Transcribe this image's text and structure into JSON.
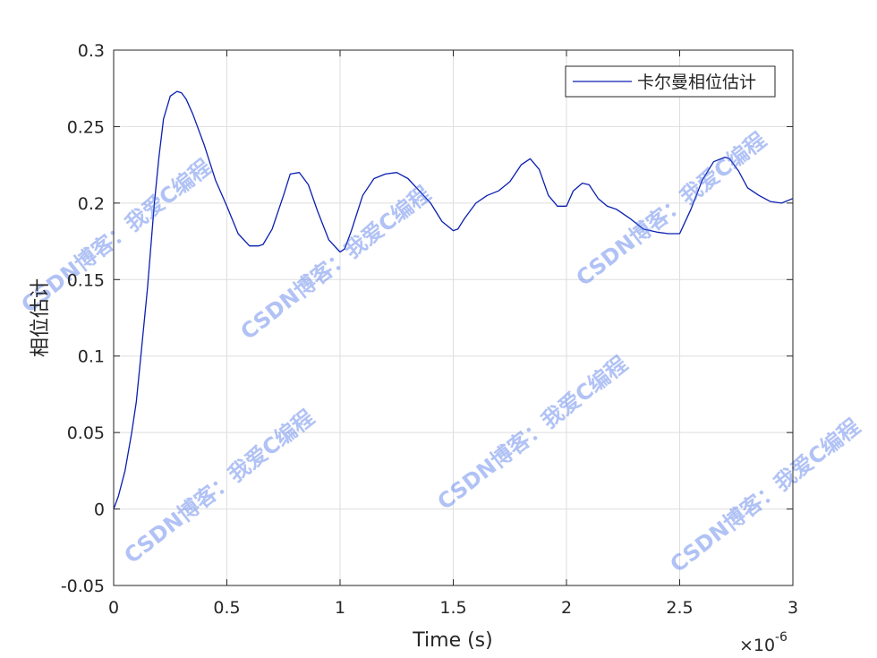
{
  "chart_data": {
    "type": "line",
    "xlabel": "Time (s)",
    "ylabel": "相位估计",
    "x_multiplier_label": "×10",
    "x_multiplier_exp": "-6",
    "xlim": [
      0,
      3
    ],
    "ylim": [
      -0.05,
      0.3
    ],
    "xticks": [
      "0",
      "0.5",
      "1",
      "1.5",
      "2",
      "2.5",
      "3"
    ],
    "yticks": [
      "-0.05",
      "0",
      "0.05",
      "0.1",
      "0.15",
      "0.2",
      "0.25",
      "0.3"
    ],
    "grid": true,
    "legend_position": "top-right",
    "series": [
      {
        "name": "卡尔曼相位估计",
        "color": "#0a1fb0",
        "x": [
          0,
          0.02,
          0.05,
          0.08,
          0.1,
          0.12,
          0.15,
          0.18,
          0.2,
          0.22,
          0.25,
          0.28,
          0.3,
          0.32,
          0.35,
          0.4,
          0.45,
          0.5,
          0.55,
          0.6,
          0.64,
          0.66,
          0.7,
          0.75,
          0.78,
          0.82,
          0.86,
          0.9,
          0.95,
          1.0,
          1.02,
          1.05,
          1.1,
          1.15,
          1.2,
          1.25,
          1.3,
          1.35,
          1.4,
          1.45,
          1.5,
          1.52,
          1.55,
          1.6,
          1.65,
          1.7,
          1.75,
          1.8,
          1.84,
          1.88,
          1.92,
          1.96,
          2.0,
          2.03,
          2.07,
          2.1,
          2.14,
          2.18,
          2.22,
          2.28,
          2.34,
          2.4,
          2.45,
          2.5,
          2.55,
          2.6,
          2.65,
          2.7,
          2.72,
          2.76,
          2.8,
          2.85,
          2.9,
          2.95,
          3.0
        ],
        "y": [
          0,
          0.008,
          0.025,
          0.05,
          0.07,
          0.1,
          0.145,
          0.2,
          0.23,
          0.255,
          0.27,
          0.273,
          0.272,
          0.268,
          0.258,
          0.238,
          0.215,
          0.198,
          0.18,
          0.172,
          0.172,
          0.173,
          0.183,
          0.205,
          0.219,
          0.22,
          0.212,
          0.195,
          0.176,
          0.168,
          0.17,
          0.182,
          0.205,
          0.216,
          0.219,
          0.22,
          0.216,
          0.208,
          0.2,
          0.188,
          0.182,
          0.183,
          0.19,
          0.2,
          0.205,
          0.208,
          0.214,
          0.225,
          0.229,
          0.222,
          0.205,
          0.198,
          0.198,
          0.208,
          0.213,
          0.212,
          0.203,
          0.198,
          0.196,
          0.19,
          0.183,
          0.181,
          0.18,
          0.18,
          0.196,
          0.215,
          0.227,
          0.23,
          0.229,
          0.221,
          0.21,
          0.205,
          0.201,
          0.2,
          0.203
        ]
      }
    ]
  },
  "watermarks": [
    {
      "text": "CSDN博客：我爱C编程"
    },
    {
      "text": "CSDN博客：我爱C编程"
    },
    {
      "text": "CSDN博客：我爱C编程"
    },
    {
      "text": "CSDN博客：我爱C编程"
    },
    {
      "text": "CSDN博客：我爱C编程"
    },
    {
      "text": "CSDN博客：我爱C编程"
    }
  ]
}
